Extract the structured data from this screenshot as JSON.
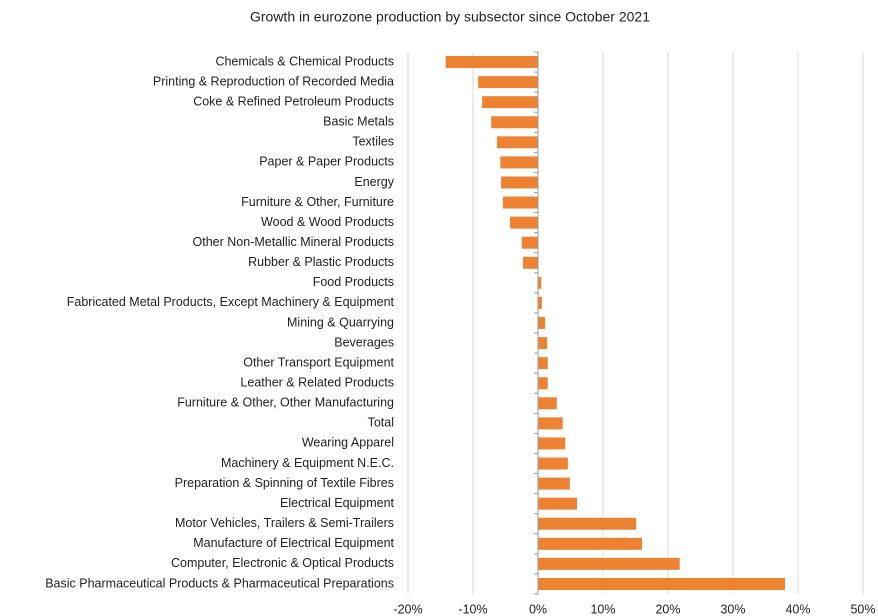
{
  "chart_data": {
    "type": "barh",
    "title": "Growth in eurozone production by subsector since October 2021",
    "categories": [
      "Chemicals & Chemical Products",
      "Printing & Reproduction of Recorded Media",
      "Coke & Refined Petroleum Products",
      "Basic Metals",
      "Textiles",
      "Paper & Paper Products",
      "Energy",
      "Furniture & Other, Furniture",
      "Wood & Wood Products",
      "Other Non-Metallic Mineral Products",
      "Rubber & Plastic Products",
      "Food Products",
      "Fabricated Metal Products, Except Machinery & Equipment",
      "Mining & Quarrying",
      "Beverages",
      "Other Transport Equipment",
      "Leather & Related Products",
      "Furniture & Other, Other Manufacturing",
      "Total",
      "Wearing Apparel",
      "Machinery & Equipment N.E.C.",
      "Preparation & Spinning of Textile Fibres",
      "Electrical Equipment",
      "Motor Vehicles, Trailers & Semi-Trailers",
      "Manufacture of Electrical Equipment",
      "Computer, Electronic & Optical Products",
      "Basic Pharmaceutical Products & Pharmaceutical Preparations"
    ],
    "values": [
      -14.2,
      -9.2,
      -8.6,
      -7.2,
      -6.3,
      -5.8,
      -5.7,
      -5.4,
      -4.3,
      -2.5,
      -2.3,
      0.5,
      0.6,
      1.1,
      1.4,
      1.5,
      1.5,
      2.9,
      3.8,
      4.2,
      4.6,
      4.9,
      6.0,
      15.1,
      16.0,
      21.8,
      38.0
    ],
    "color": "#ee8233",
    "xlim": [
      -20,
      50
    ],
    "xticks": [
      {
        "value": -20,
        "label": "-20%"
      },
      {
        "value": -10,
        "label": "-10%"
      },
      {
        "value": 0,
        "label": "0%"
      },
      {
        "value": 10,
        "label": "10%"
      },
      {
        "value": 20,
        "label": "20%"
      },
      {
        "value": 30,
        "label": "30%"
      },
      {
        "value": 40,
        "label": "40%"
      },
      {
        "value": 50,
        "label": "50%"
      }
    ],
    "grid": true
  }
}
